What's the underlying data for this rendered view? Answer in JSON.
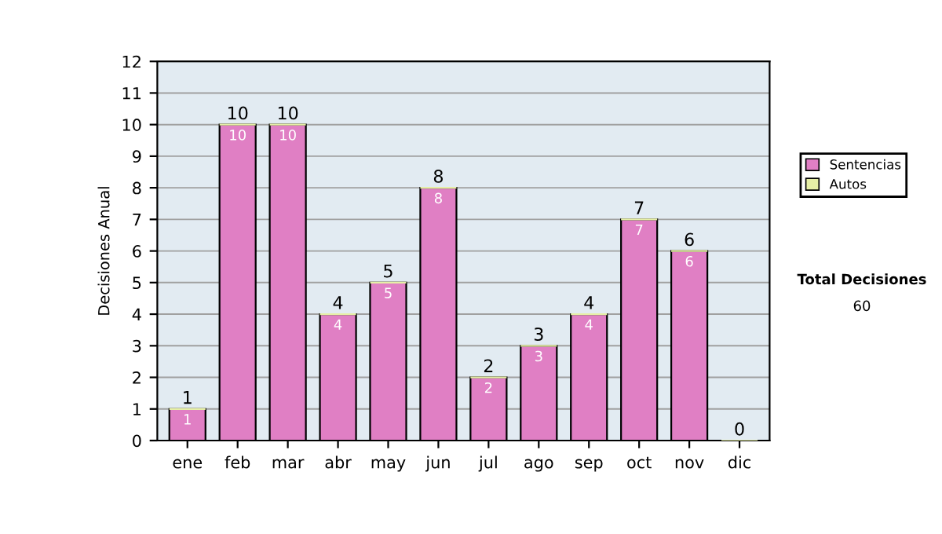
{
  "chart_data": {
    "type": "bar",
    "stacked": true,
    "ylabel": "Decisiones Anual",
    "categories": [
      "ene",
      "feb",
      "mar",
      "abr",
      "may",
      "jun",
      "jul",
      "ago",
      "sep",
      "oct",
      "nov",
      "dic"
    ],
    "series": [
      {
        "name": "Sentencias",
        "color": "#e07fc4",
        "values": [
          1,
          10,
          10,
          4,
          5,
          8,
          2,
          3,
          4,
          7,
          6,
          0
        ],
        "value_labels": [
          "1",
          "10",
          "10",
          "4",
          "5",
          "8",
          "2",
          "3",
          "4",
          "7",
          "6",
          null
        ]
      },
      {
        "name": "Autos",
        "color": "#e6efa6",
        "values": [
          0,
          0,
          0,
          0,
          0,
          0,
          0,
          0,
          0,
          0,
          0,
          0
        ]
      }
    ],
    "totals": [
      "1",
      "10",
      "10",
      "4",
      "5",
      "8",
      "2",
      "3",
      "4",
      "7",
      "6",
      "0"
    ],
    "ylim": [
      0,
      12
    ],
    "yticks": [
      0,
      1,
      2,
      3,
      4,
      5,
      6,
      7,
      8,
      9,
      10,
      11,
      12
    ],
    "grid": "y",
    "legend": "right",
    "annotations": [
      "Total Decisiones",
      "60"
    ]
  }
}
